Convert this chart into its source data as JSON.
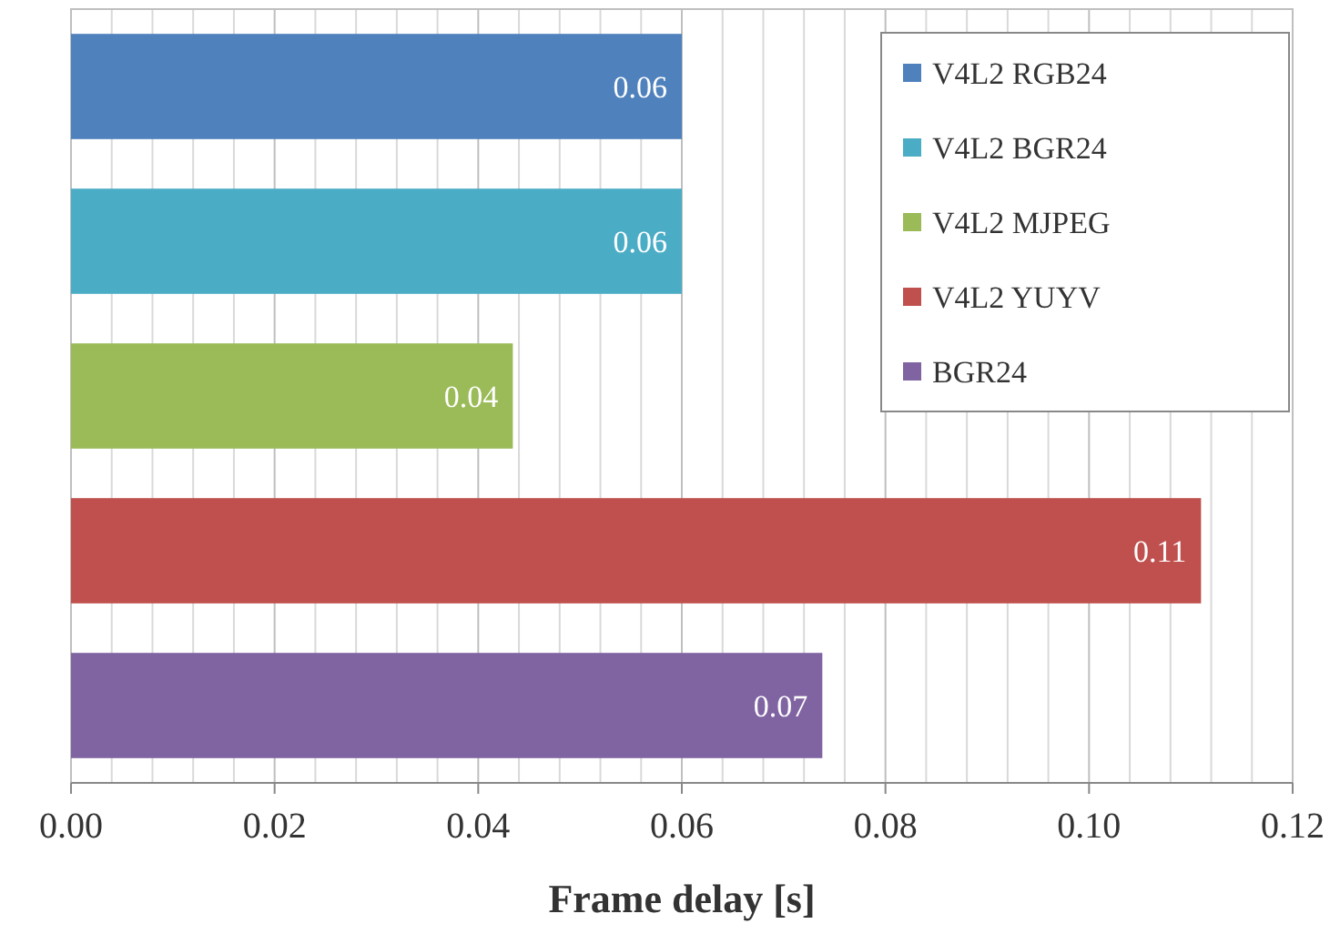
{
  "chart_data": {
    "type": "bar",
    "orientation": "horizontal",
    "xlabel": "Frame delay [s]",
    "categories": [
      null,
      null,
      null,
      null,
      null
    ],
    "series": [
      {
        "name": "V4L2 RGB24",
        "color": "#4f81bd",
        "values": [
          0.06,
          null,
          null,
          null,
          null
        ],
        "value_labels": [
          "0.06",
          null,
          null,
          null,
          null
        ]
      },
      {
        "name": "V4L2 BGR24",
        "color": "#4bacc6",
        "values": [
          null,
          0.06,
          null,
          null,
          null
        ],
        "value_labels": [
          null,
          "0.06",
          null,
          null,
          null
        ]
      },
      {
        "name": "V4L2 MJPEG",
        "color": "#9bbb59",
        "values": [
          null,
          null,
          0.0434,
          null,
          null
        ],
        "value_labels": [
          null,
          null,
          "0.04",
          null,
          null
        ]
      },
      {
        "name": "V4L2 YUYV",
        "color": "#c0504d",
        "values": [
          null,
          null,
          null,
          0.111,
          null
        ],
        "value_labels": [
          null,
          null,
          null,
          "0.11",
          null
        ]
      },
      {
        "name": "BGR24",
        "color": "#8064a2",
        "values": [
          null,
          null,
          null,
          null,
          0.0738
        ],
        "value_labels": [
          null,
          null,
          null,
          null,
          "0.07"
        ]
      }
    ],
    "xlim": [
      0,
      0.12
    ],
    "xticks": [
      {
        "value": 0,
        "label": "0.00"
      },
      {
        "value": 0.004,
        "label": null
      },
      {
        "value": 0.008,
        "label": null
      },
      {
        "value": 0.012,
        "label": null
      },
      {
        "value": 0.016,
        "label": null
      },
      {
        "value": 0.02,
        "label": "0.02"
      },
      {
        "value": 0.024,
        "label": null
      },
      {
        "value": 0.028,
        "label": null
      },
      {
        "value": 0.032,
        "label": null
      },
      {
        "value": 0.036,
        "label": null
      },
      {
        "value": 0.04,
        "label": "0.04"
      },
      {
        "value": 0.044,
        "label": null
      },
      {
        "value": 0.048,
        "label": null
      },
      {
        "value": 0.052,
        "label": null
      },
      {
        "value": 0.056,
        "label": null
      },
      {
        "value": 0.06,
        "label": "0.06"
      },
      {
        "value": 0.064,
        "label": null
      },
      {
        "value": 0.068,
        "label": null
      },
      {
        "value": 0.072,
        "label": null
      },
      {
        "value": 0.076,
        "label": null
      },
      {
        "value": 0.08,
        "label": "0.08"
      },
      {
        "value": 0.084,
        "label": null
      },
      {
        "value": 0.088,
        "label": null
      },
      {
        "value": 0.092,
        "label": null
      },
      {
        "value": 0.096,
        "label": null
      },
      {
        "value": 0.1,
        "label": "0.10"
      },
      {
        "value": 0.104,
        "label": null
      },
      {
        "value": 0.108,
        "label": null
      },
      {
        "value": 0.112,
        "label": null
      },
      {
        "value": 0.116,
        "label": null
      },
      {
        "value": 0.12,
        "label": "0.12"
      }
    ],
    "grid": "x",
    "legend": "top right"
  }
}
